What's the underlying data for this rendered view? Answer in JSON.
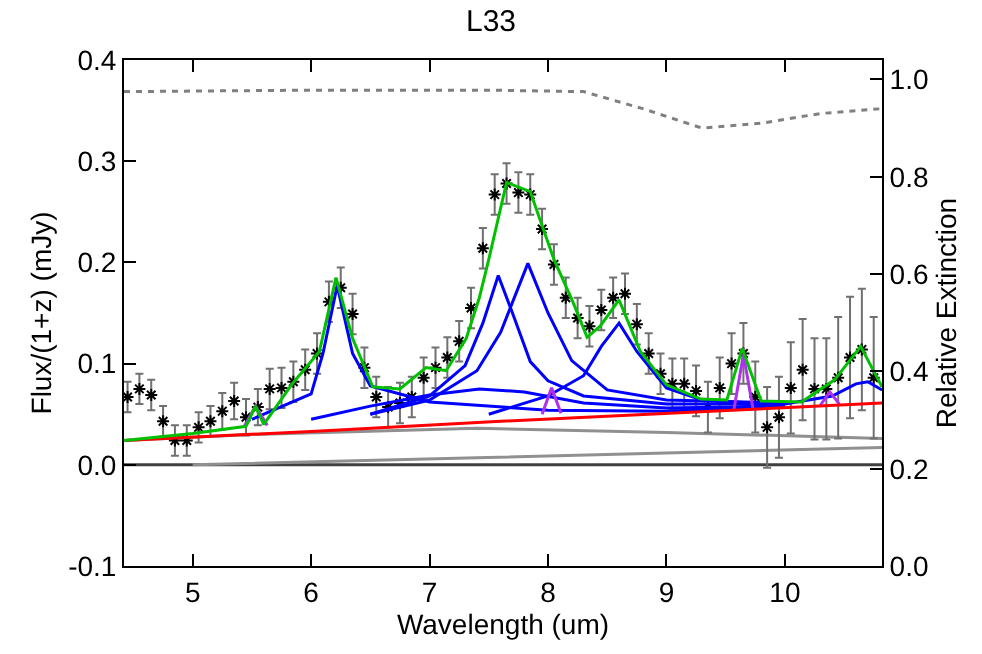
{
  "chart_data": {
    "type": "line",
    "title": "L33",
    "xlabel": "Wavelength (um)",
    "ylabel": "Flux/(1+z) (mJy)",
    "y2label": "Relative Extinction",
    "xlim": [
      4.42,
      10.82
    ],
    "xticks": [
      5,
      6,
      7,
      8,
      9,
      10
    ],
    "ylim": [
      -0.1,
      0.4
    ],
    "yticks": [
      -0.1,
      {
        "value": 0,
        "label": "0.0"
      },
      0.1,
      0.2,
      0.3,
      0.4
    ],
    "y2lim": [
      0,
      1.04
    ],
    "y2ticks": [
      {
        "value": 0,
        "label": "0.0"
      },
      0.2,
      0.4,
      0.6,
      0.8,
      {
        "value": 1,
        "label": "1.0"
      }
    ],
    "grid": false,
    "series": [
      {
        "type": "line",
        "color": "#404040",
        "x": [
          4.42,
          10.82
        ],
        "values": [
          0,
          0
        ]
      },
      {
        "type": "line",
        "color": "#909090",
        "x": [
          4.42,
          5.5,
          7.4,
          9,
          10.82
        ],
        "values": [
          0.024,
          0.03,
          0.036,
          0.032,
          0.026
        ]
      },
      {
        "type": "line",
        "color": "#909090",
        "x": [
          5.0,
          7.4,
          10.82
        ],
        "values": [
          0.0,
          0.007,
          0.017
        ]
      },
      {
        "type": "line",
        "axis": "y2",
        "line_style": "dotted",
        "color": "#808080",
        "x": [
          4.42,
          6,
          7.5,
          8.3,
          8.8,
          9.3,
          9.8,
          10.3,
          10.82
        ],
        "values": [
          0.975,
          0.978,
          0.978,
          0.975,
          0.94,
          0.9,
          0.91,
          0.93,
          0.94
        ]
      },
      {
        "type": "scatter",
        "marker": "cross",
        "color": "#000000",
        "x": [
          4.45,
          4.55,
          4.65,
          4.75,
          4.85,
          4.95,
          5.05,
          5.15,
          5.25,
          5.35,
          5.45,
          5.55,
          5.65,
          5.75,
          5.85,
          5.95,
          6.05,
          6.15,
          6.25,
          6.35,
          6.45,
          6.55,
          6.65,
          6.75,
          6.85,
          6.95,
          7.05,
          7.15,
          7.25,
          7.35,
          7.45,
          7.55,
          7.65,
          7.75,
          7.85,
          7.95,
          8.05,
          8.15,
          8.25,
          8.35,
          8.45,
          8.55,
          8.65,
          8.75,
          8.85,
          8.95,
          9.05,
          9.15,
          9.25,
          9.35,
          9.45,
          9.55,
          9.65,
          9.75,
          9.85,
          9.95,
          10.05,
          10.15,
          10.25,
          10.35,
          10.45,
          10.55,
          10.65,
          10.75
        ],
        "values": [
          0.067,
          0.075,
          0.069,
          0.043,
          0.024,
          0.024,
          0.037,
          0.043,
          0.053,
          0.063,
          0.047,
          0.057,
          0.075,
          0.076,
          0.082,
          0.094,
          0.11,
          0.161,
          0.175,
          0.149,
          0.096,
          0.067,
          0.057,
          0.061,
          0.067,
          0.086,
          0.096,
          0.106,
          0.122,
          0.155,
          0.214,
          0.267,
          0.278,
          0.269,
          0.267,
          0.233,
          0.198,
          0.165,
          0.145,
          0.137,
          0.153,
          0.165,
          0.169,
          0.139,
          0.11,
          0.09,
          0.08,
          0.08,
          0.073,
          0.057,
          0.076,
          0.1,
          0.11,
          0.067,
          0.037,
          0.047,
          0.076,
          0.094,
          0.075,
          0.075,
          0.086,
          0.106,
          0.114,
          0.086
        ],
        "errors": [
          0.015,
          0.015,
          0.015,
          0.015,
          0.015,
          0.015,
          0.015,
          0.015,
          0.018,
          0.018,
          0.018,
          0.018,
          0.02,
          0.02,
          0.02,
          0.02,
          0.02,
          0.02,
          0.02,
          0.02,
          0.02,
          0.02,
          0.02,
          0.02,
          0.02,
          0.02,
          0.02,
          0.02,
          0.02,
          0.02,
          0.02,
          0.02,
          0.02,
          0.02,
          0.02,
          0.02,
          0.02,
          0.02,
          0.02,
          0.02,
          0.02,
          0.02,
          0.02,
          0.02,
          0.02,
          0.02,
          0.025,
          0.025,
          0.025,
          0.025,
          0.03,
          0.03,
          0.03,
          0.035,
          0.04,
          0.04,
          0.045,
          0.05,
          0.05,
          0.05,
          0.06,
          0.06,
          0.06,
          0.06
        ]
      },
      {
        "type": "line",
        "color": "#0000ff",
        "x": [
          5.5,
          6.0,
          6.1,
          6.22,
          6.35,
          6.5,
          7.0,
          8.0,
          9.0,
          10.0
        ],
        "values": [
          0.045,
          0.07,
          0.11,
          0.177,
          0.11,
          0.078,
          0.062,
          0.054,
          0.053,
          0.059
        ]
      },
      {
        "type": "line",
        "color": "#0000ff",
        "x": [
          6.5,
          7.0,
          7.3,
          7.45,
          7.58,
          7.7,
          7.85,
          8.0,
          8.3,
          9.0,
          10.0
        ],
        "values": [
          0.05,
          0.068,
          0.098,
          0.14,
          0.187,
          0.15,
          0.102,
          0.083,
          0.068,
          0.06,
          0.06
        ]
      },
      {
        "type": "line",
        "color": "#0000ff",
        "x": [
          6.5,
          7.0,
          7.4,
          7.6,
          7.83,
          8.0,
          8.2,
          8.5,
          9.0,
          10.0
        ],
        "values": [
          0.05,
          0.064,
          0.093,
          0.131,
          0.199,
          0.15,
          0.103,
          0.074,
          0.064,
          0.061
        ]
      },
      {
        "type": "line",
        "color": "#0000ff",
        "x": [
          6.0,
          6.5,
          7.0,
          7.42,
          7.8,
          8.3,
          9.0,
          10.0
        ],
        "values": [
          0.045,
          0.058,
          0.069,
          0.075,
          0.072,
          0.061,
          0.056,
          0.058
        ]
      },
      {
        "type": "line",
        "color": "#0000ff",
        "x": [
          7.5,
          8.0,
          8.3,
          8.45,
          8.6,
          8.75,
          9.0,
          9.3,
          10.0
        ],
        "values": [
          0.05,
          0.068,
          0.088,
          0.117,
          0.14,
          0.112,
          0.076,
          0.064,
          0.059
        ]
      },
      {
        "type": "line",
        "color": "#0000ff",
        "x": [
          9.5,
          10.0,
          10.4,
          10.6,
          10.7,
          10.82
        ],
        "values": [
          0.056,
          0.06,
          0.068,
          0.08,
          0.082,
          0.074
        ]
      },
      {
        "type": "line",
        "color": "#b030f0",
        "x": [
          5.43,
          5.53,
          5.63,
          5.7,
          7.95,
          8.03,
          8.11,
          8.2,
          9.57,
          9.65,
          9.73,
          9.8,
          10.3,
          10.38,
          10.46
        ],
        "values": [
          0.037,
          0.058,
          0.039,
          null,
          0.05,
          0.076,
          0.051,
          null,
          0.055,
          0.109,
          0.056,
          null,
          0.059,
          0.072,
          0.06
        ]
      },
      {
        "type": "line",
        "color": "#ff0000",
        "x": [
          4.42,
          6,
          7.6,
          9.2,
          10.82
        ],
        "values": [
          0.024,
          0.033,
          0.043,
          0.052,
          0.061
        ]
      },
      {
        "type": "line",
        "color": "#00c000",
        "x": [
          4.42,
          5.0,
          5.45,
          5.53,
          5.6,
          5.84,
          6.07,
          6.21,
          6.35,
          6.52,
          6.75,
          6.97,
          7.14,
          7.31,
          7.42,
          7.5,
          7.65,
          7.85,
          7.93,
          8.05,
          8.21,
          8.33,
          8.44,
          8.6,
          8.78,
          9.0,
          9.29,
          9.51,
          9.64,
          9.8,
          10.14,
          10.42,
          10.64,
          10.82
        ],
        "values": [
          0.024,
          0.031,
          0.038,
          0.058,
          0.04,
          0.08,
          0.112,
          0.185,
          0.125,
          0.077,
          0.075,
          0.096,
          0.093,
          0.125,
          0.165,
          0.203,
          0.279,
          0.27,
          0.243,
          0.203,
          0.161,
          0.126,
          0.137,
          0.163,
          0.112,
          0.079,
          0.065,
          0.064,
          0.115,
          0.063,
          0.062,
          0.084,
          0.117,
          0.077
        ]
      }
    ]
  }
}
